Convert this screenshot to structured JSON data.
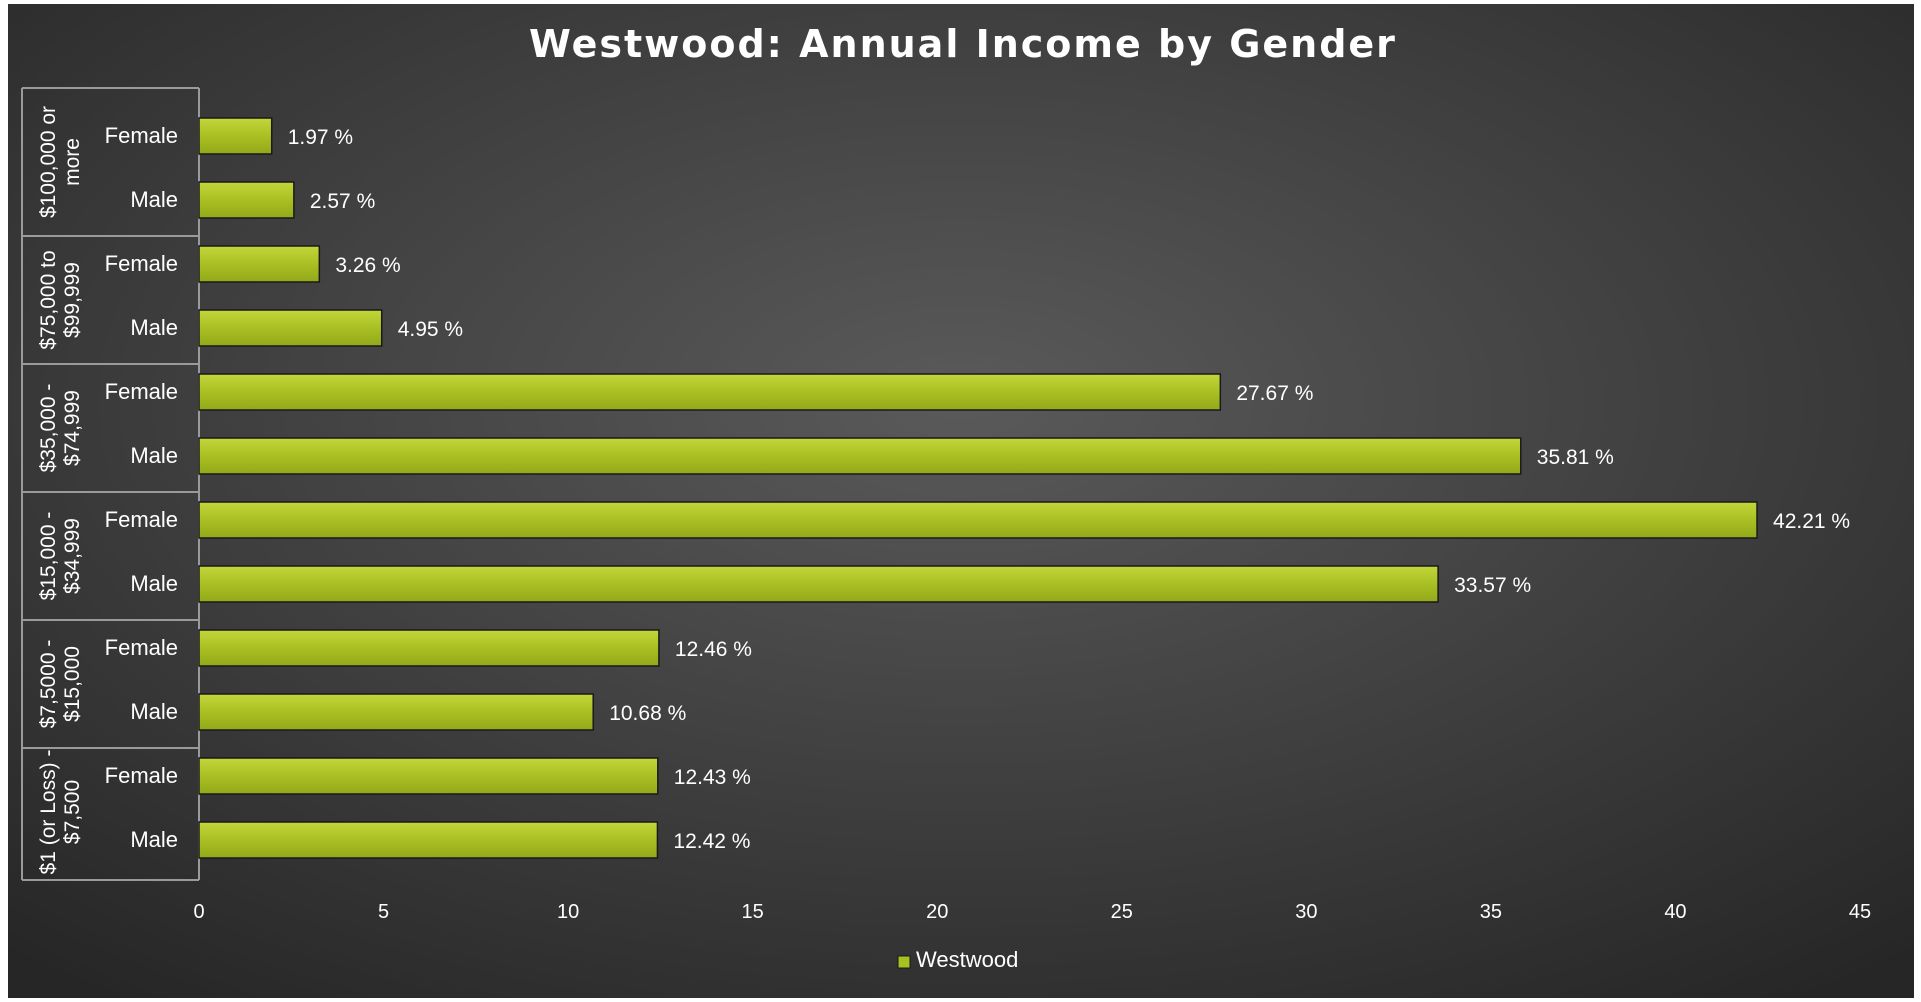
{
  "chart_data": {
    "type": "bar",
    "orientation": "horizontal",
    "title": "Westwood: Annual Income by Gender",
    "xlabel": "",
    "ylabel": "",
    "xlim": [
      0,
      45
    ],
    "x_ticks": [
      0,
      5,
      10,
      15,
      20,
      25,
      30,
      35,
      40,
      45
    ],
    "grid": false,
    "legend": {
      "position": "bottom",
      "entries": [
        "Westwood"
      ]
    },
    "series": [
      {
        "name": "Westwood",
        "color": "#a9c023",
        "groups": [
          {
            "category_lines": [
              "$100,000 or",
              "more"
            ],
            "bars": [
              {
                "label": "Female",
                "value": 1.97,
                "data_label": "1.97 %"
              },
              {
                "label": "Male",
                "value": 2.57,
                "data_label": "2.57 %"
              }
            ]
          },
          {
            "category_lines": [
              "$75,000 to",
              "$99,999"
            ],
            "bars": [
              {
                "label": "Female",
                "value": 3.26,
                "data_label": "3.26 %"
              },
              {
                "label": "Male",
                "value": 4.95,
                "data_label": "4.95 %"
              }
            ]
          },
          {
            "category_lines": [
              "$35,000 -",
              "$74,999"
            ],
            "bars": [
              {
                "label": "Female",
                "value": 27.67,
                "data_label": "27.67 %"
              },
              {
                "label": "Male",
                "value": 35.81,
                "data_label": "35.81 %"
              }
            ]
          },
          {
            "category_lines": [
              "$15,000 -",
              "$34,999"
            ],
            "bars": [
              {
                "label": "Female",
                "value": 42.21,
                "data_label": "42.21 %"
              },
              {
                "label": "Male",
                "value": 33.57,
                "data_label": "33.57 %"
              }
            ]
          },
          {
            "category_lines": [
              "$7,5000 -",
              "$15,000"
            ],
            "bars": [
              {
                "label": "Female",
                "value": 12.46,
                "data_label": "12.46 %"
              },
              {
                "label": "Male",
                "value": 10.68,
                "data_label": "10.68 %"
              }
            ]
          },
          {
            "category_lines": [
              "$1 (or Loss) -",
              "$7,500"
            ],
            "bars": [
              {
                "label": "Female",
                "value": 12.43,
                "data_label": "12.43 %"
              },
              {
                "label": "Male",
                "value": 12.42,
                "data_label": "12.42 %"
              }
            ]
          }
        ]
      }
    ],
    "colors": {
      "background_center": "#5a5a5a",
      "background_edge": "#262626",
      "axis_line": "#9a9a9a",
      "bar_stroke": "#1a1a1a"
    }
  }
}
